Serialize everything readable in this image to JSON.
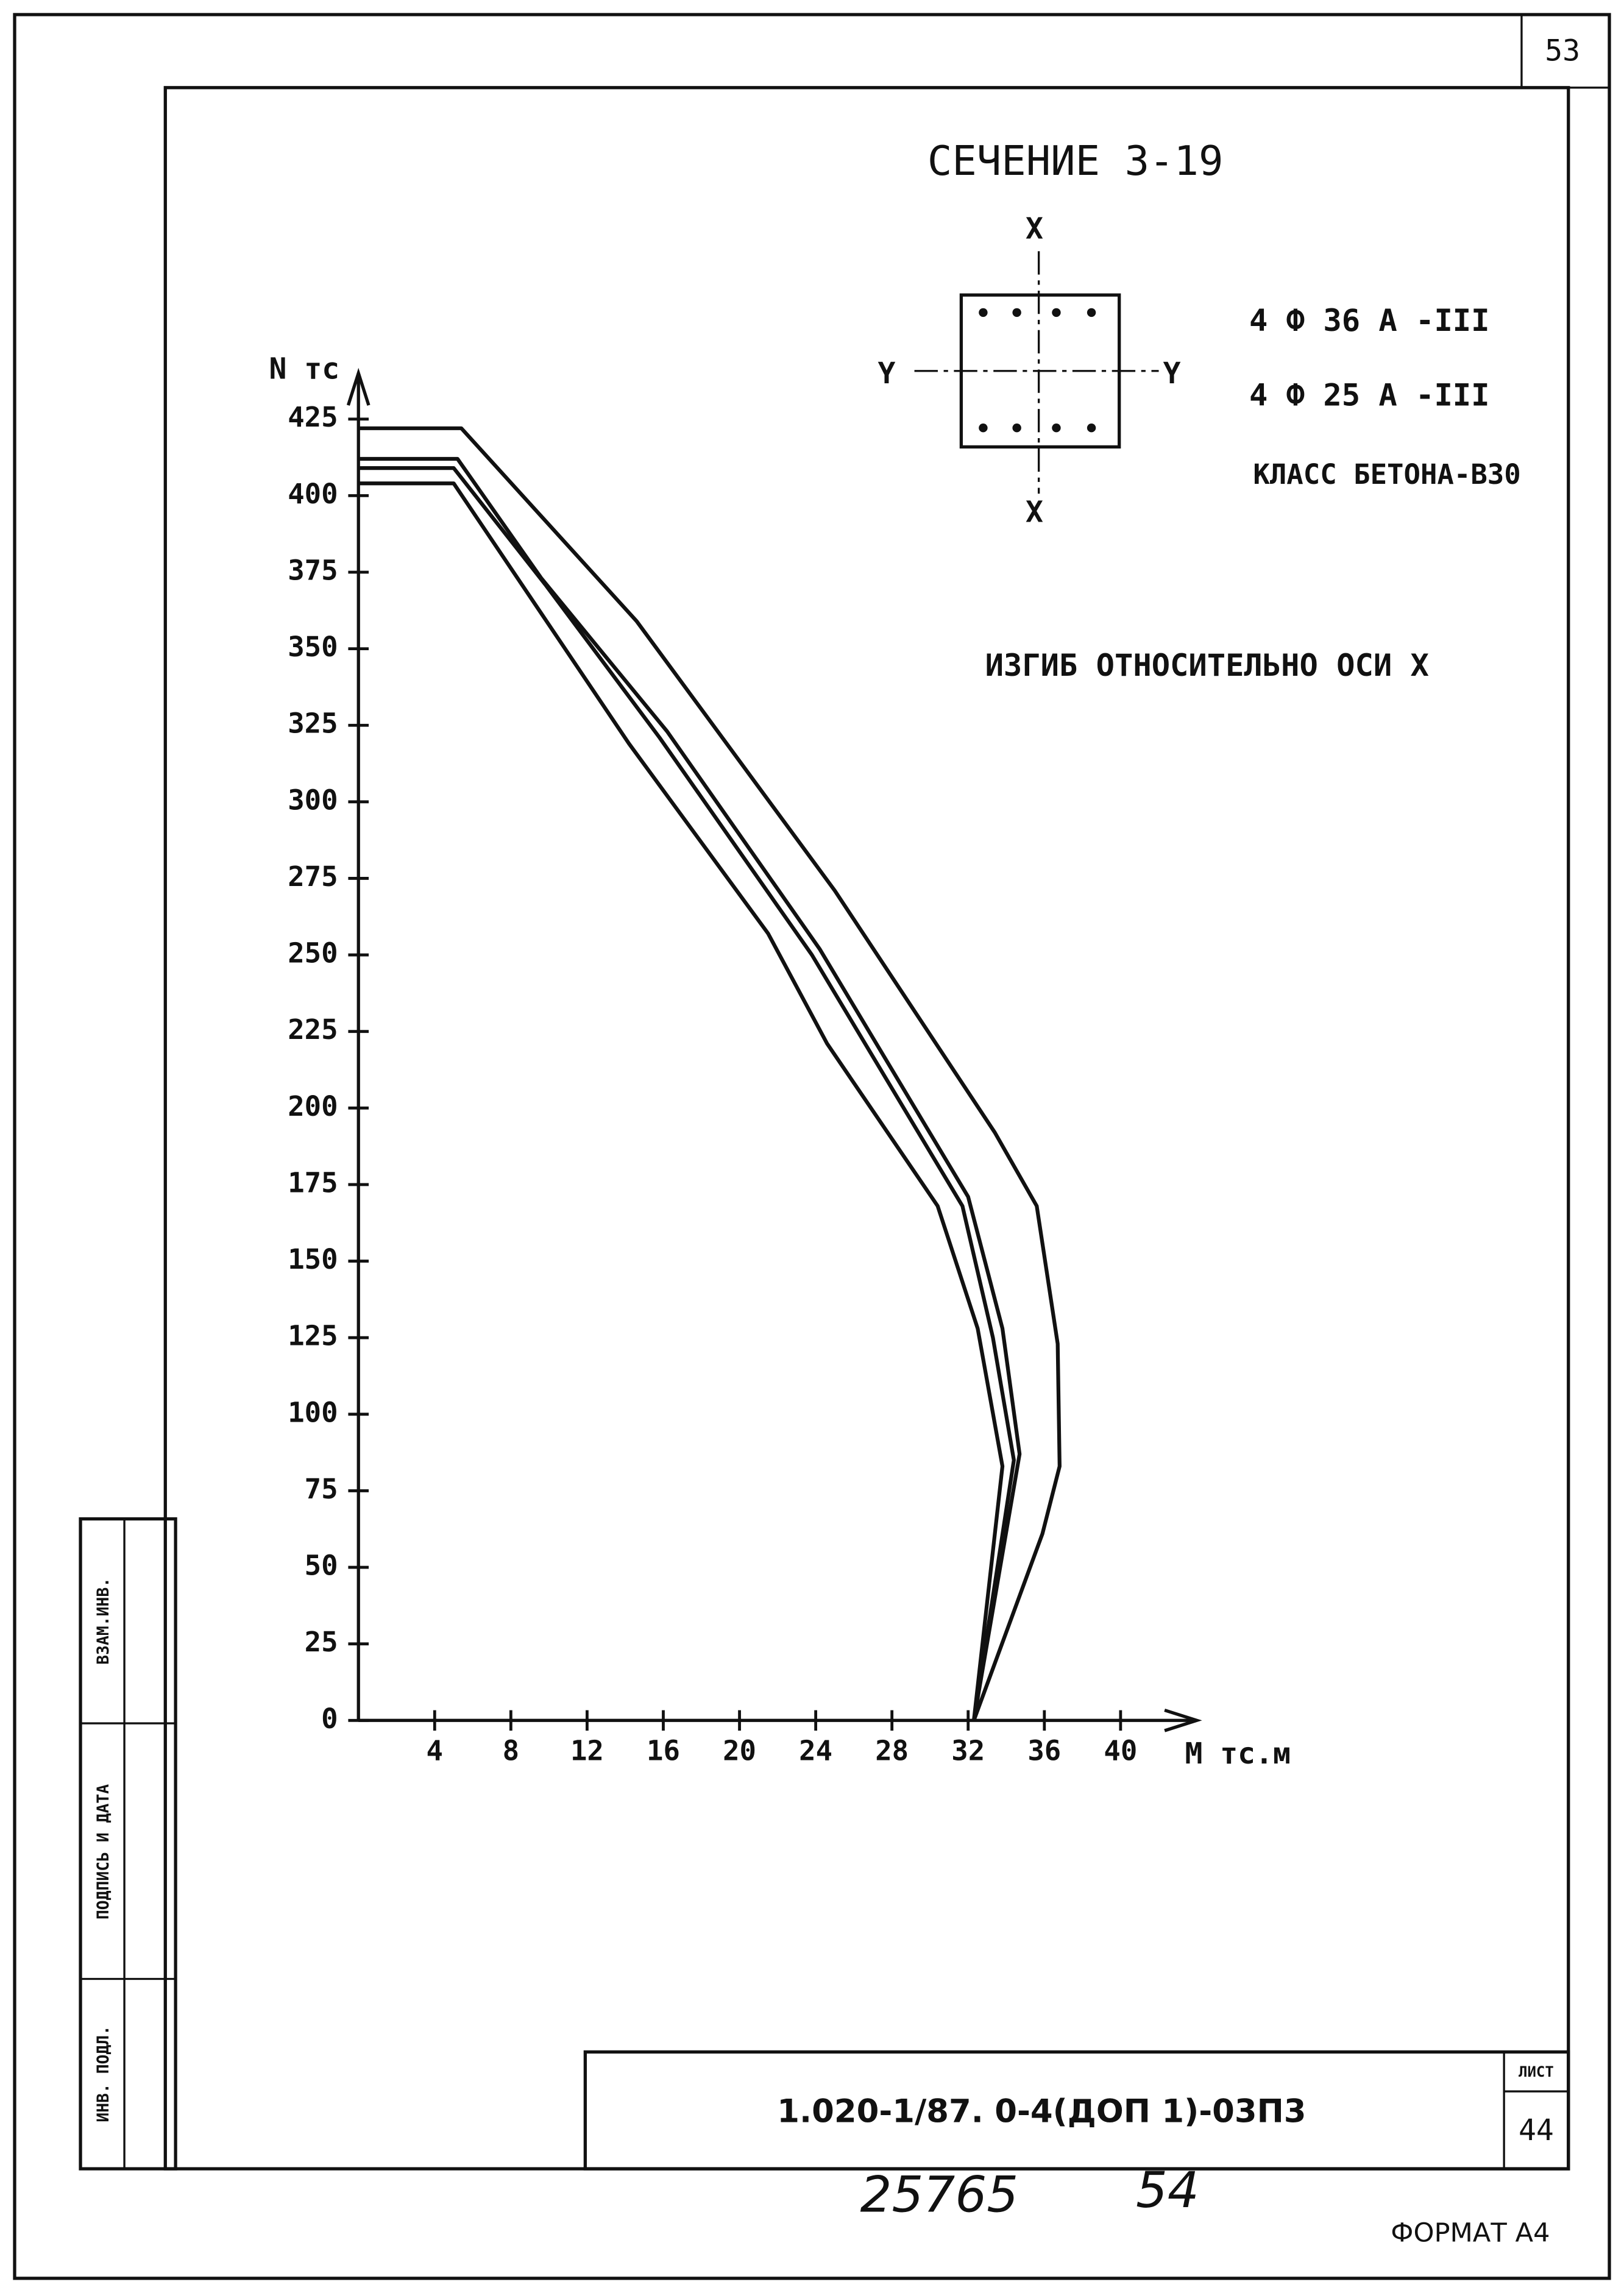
{
  "chart_data": {
    "type": "line",
    "title": "СЕЧЕНИЕ 3-19",
    "ylabel": "N тс",
    "xlabel": "M тс.м",
    "annotations": [
      "4 Ф 36 А -III",
      "4 Ф 25 А -III",
      "КЛАСС БЕТОНА-В30",
      "ИЗГИБ ОТНОСИТЕЛЬНО ОСИ Х"
    ],
    "section_axes": [
      "X",
      "X",
      "Y",
      "Y"
    ],
    "xlim": [
      0,
      44
    ],
    "ylim": [
      0,
      440
    ],
    "xticks": [
      4,
      8,
      12,
      16,
      20,
      24,
      28,
      32,
      36,
      40
    ],
    "yticks": [
      0,
      25,
      50,
      75,
      100,
      125,
      150,
      175,
      200,
      225,
      250,
      275,
      300,
      325,
      350,
      375,
      400,
      425
    ],
    "series": [
      {
        "color": "#111111",
        "x": [
          0,
          5.4,
          14.6,
          25,
          33.4,
          35.6,
          36.7,
          36.8,
          35.9,
          32.3
        ],
        "values": [
          422,
          422,
          359,
          271,
          192,
          168,
          123,
          83,
          61,
          0
        ]
      },
      {
        "color": "#111111",
        "x": [
          0,
          5.2,
          9.6,
          16.2,
          24.2,
          32,
          33.8,
          34.7,
          32.3
        ],
        "values": [
          412,
          412,
          373,
          323,
          252,
          171,
          128,
          87,
          0
        ]
      },
      {
        "color": "#111111",
        "x": [
          0,
          5,
          9.8,
          15.8,
          23.8,
          31.7,
          33.3,
          34.4,
          32.3
        ],
        "values": [
          409,
          409,
          371,
          321,
          250,
          168,
          125,
          85,
          0
        ]
      },
      {
        "color": "#111111",
        "x": [
          0,
          5,
          14.2,
          21.5,
          24.6,
          30.4,
          32.5,
          33.8,
          32.3
        ],
        "values": [
          404,
          404,
          319,
          257,
          221,
          168,
          128,
          83,
          0
        ]
      }
    ]
  },
  "sheet": {
    "page_number": "53",
    "stamps": [
      "ВЗАМ.ИНВ.",
      "ПОДПИСЬ И ДАТА",
      "ИНВ. ПОДЛ."
    ],
    "designation": "1.020-1/87. 0-4(ДОП 1)-03П3",
    "sheet_label": "ЛИСТ",
    "sheet_number": "44",
    "handwritten": [
      "25765",
      "54"
    ],
    "format": "ФОРМАТ А4"
  }
}
